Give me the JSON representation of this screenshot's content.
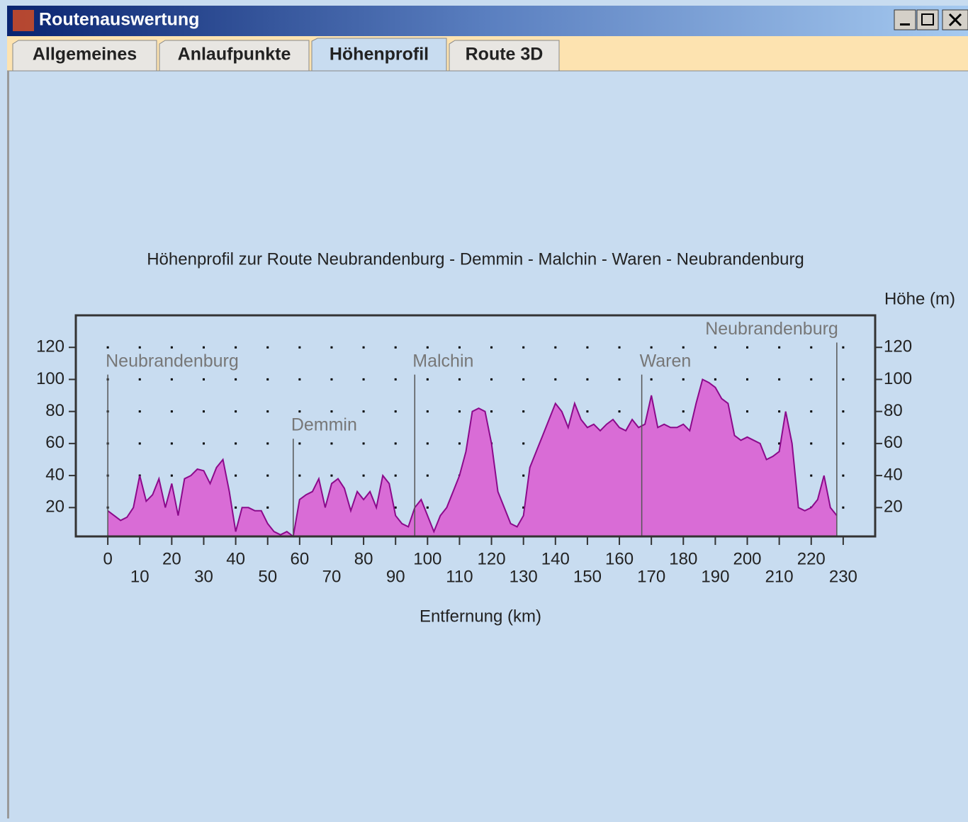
{
  "window": {
    "title": "Routenauswertung",
    "tabs": [
      "Allgemeines",
      "Anlaufpunkte",
      "Höhenprofil",
      "Route 3D"
    ],
    "selected_tab": 2
  },
  "chart_data": {
    "type": "area",
    "title": "Höhenprofil zur Route Neubrandenburg - Demmin - Malchin - Waren - Neubrandenburg",
    "xlabel": "Entfernung (km)",
    "ylabel": "Höhe (m)",
    "x": [
      0,
      2,
      4,
      6,
      8,
      10,
      12,
      14,
      16,
      18,
      20,
      22,
      24,
      26,
      28,
      30,
      32,
      34,
      36,
      38,
      40,
      42,
      44,
      46,
      48,
      50,
      52,
      54,
      56,
      58,
      60,
      62,
      64,
      66,
      68,
      70,
      72,
      74,
      76,
      78,
      80,
      82,
      84,
      86,
      88,
      90,
      92,
      94,
      96,
      98,
      100,
      102,
      104,
      106,
      108,
      110,
      112,
      114,
      116,
      118,
      120,
      122,
      124,
      126,
      128,
      130,
      132,
      134,
      136,
      138,
      140,
      142,
      144,
      146,
      148,
      150,
      152,
      154,
      156,
      158,
      160,
      162,
      164,
      166,
      168,
      170,
      172,
      174,
      176,
      178,
      180,
      182,
      184,
      186,
      188,
      190,
      192,
      194,
      196,
      198,
      200,
      202,
      204,
      206,
      208,
      210,
      212,
      214,
      216,
      218,
      220,
      222,
      224,
      226,
      228
    ],
    "values": [
      18,
      15,
      12,
      14,
      20,
      40,
      24,
      28,
      38,
      20,
      35,
      15,
      38,
      40,
      44,
      43,
      35,
      45,
      50,
      30,
      5,
      20,
      20,
      18,
      18,
      10,
      5,
      3,
      5,
      2,
      25,
      28,
      30,
      38,
      20,
      35,
      38,
      32,
      18,
      30,
      25,
      30,
      20,
      40,
      35,
      15,
      10,
      8,
      20,
      25,
      15,
      5,
      15,
      20,
      30,
      40,
      55,
      80,
      82,
      80,
      60,
      30,
      20,
      10,
      8,
      15,
      45,
      55,
      65,
      75,
      85,
      80,
      70,
      85,
      75,
      70,
      72,
      68,
      72,
      75,
      70,
      68,
      75,
      70,
      72,
      90,
      70,
      72,
      70,
      70,
      72,
      68,
      85,
      100,
      98,
      95,
      88,
      85,
      65,
      62,
      64,
      62,
      60,
      50,
      52,
      55,
      80,
      60,
      20,
      18,
      20,
      25,
      40,
      20,
      15
    ],
    "color": "#d96cd6",
    "line_color": "#8b0a8b",
    "xlim": [
      -10,
      240
    ],
    "ylim": [
      2,
      140
    ],
    "xticks": [
      0,
      10,
      20,
      30,
      40,
      50,
      60,
      70,
      80,
      90,
      100,
      110,
      120,
      130,
      140,
      150,
      160,
      170,
      180,
      190,
      200,
      210,
      220,
      230
    ],
    "yticks": [
      20,
      40,
      60,
      80,
      100,
      120
    ],
    "grid": true,
    "annotations": [
      {
        "text": "Neubrandenburg",
        "x": 0,
        "y": 103
      },
      {
        "text": "Demmin",
        "x": 58,
        "y": 63
      },
      {
        "text": "Malchin",
        "x": 96,
        "y": 103
      },
      {
        "text": "Waren",
        "x": 167,
        "y": 103
      },
      {
        "text": "Neubrandenburg",
        "x": 228,
        "y": 123
      }
    ]
  }
}
